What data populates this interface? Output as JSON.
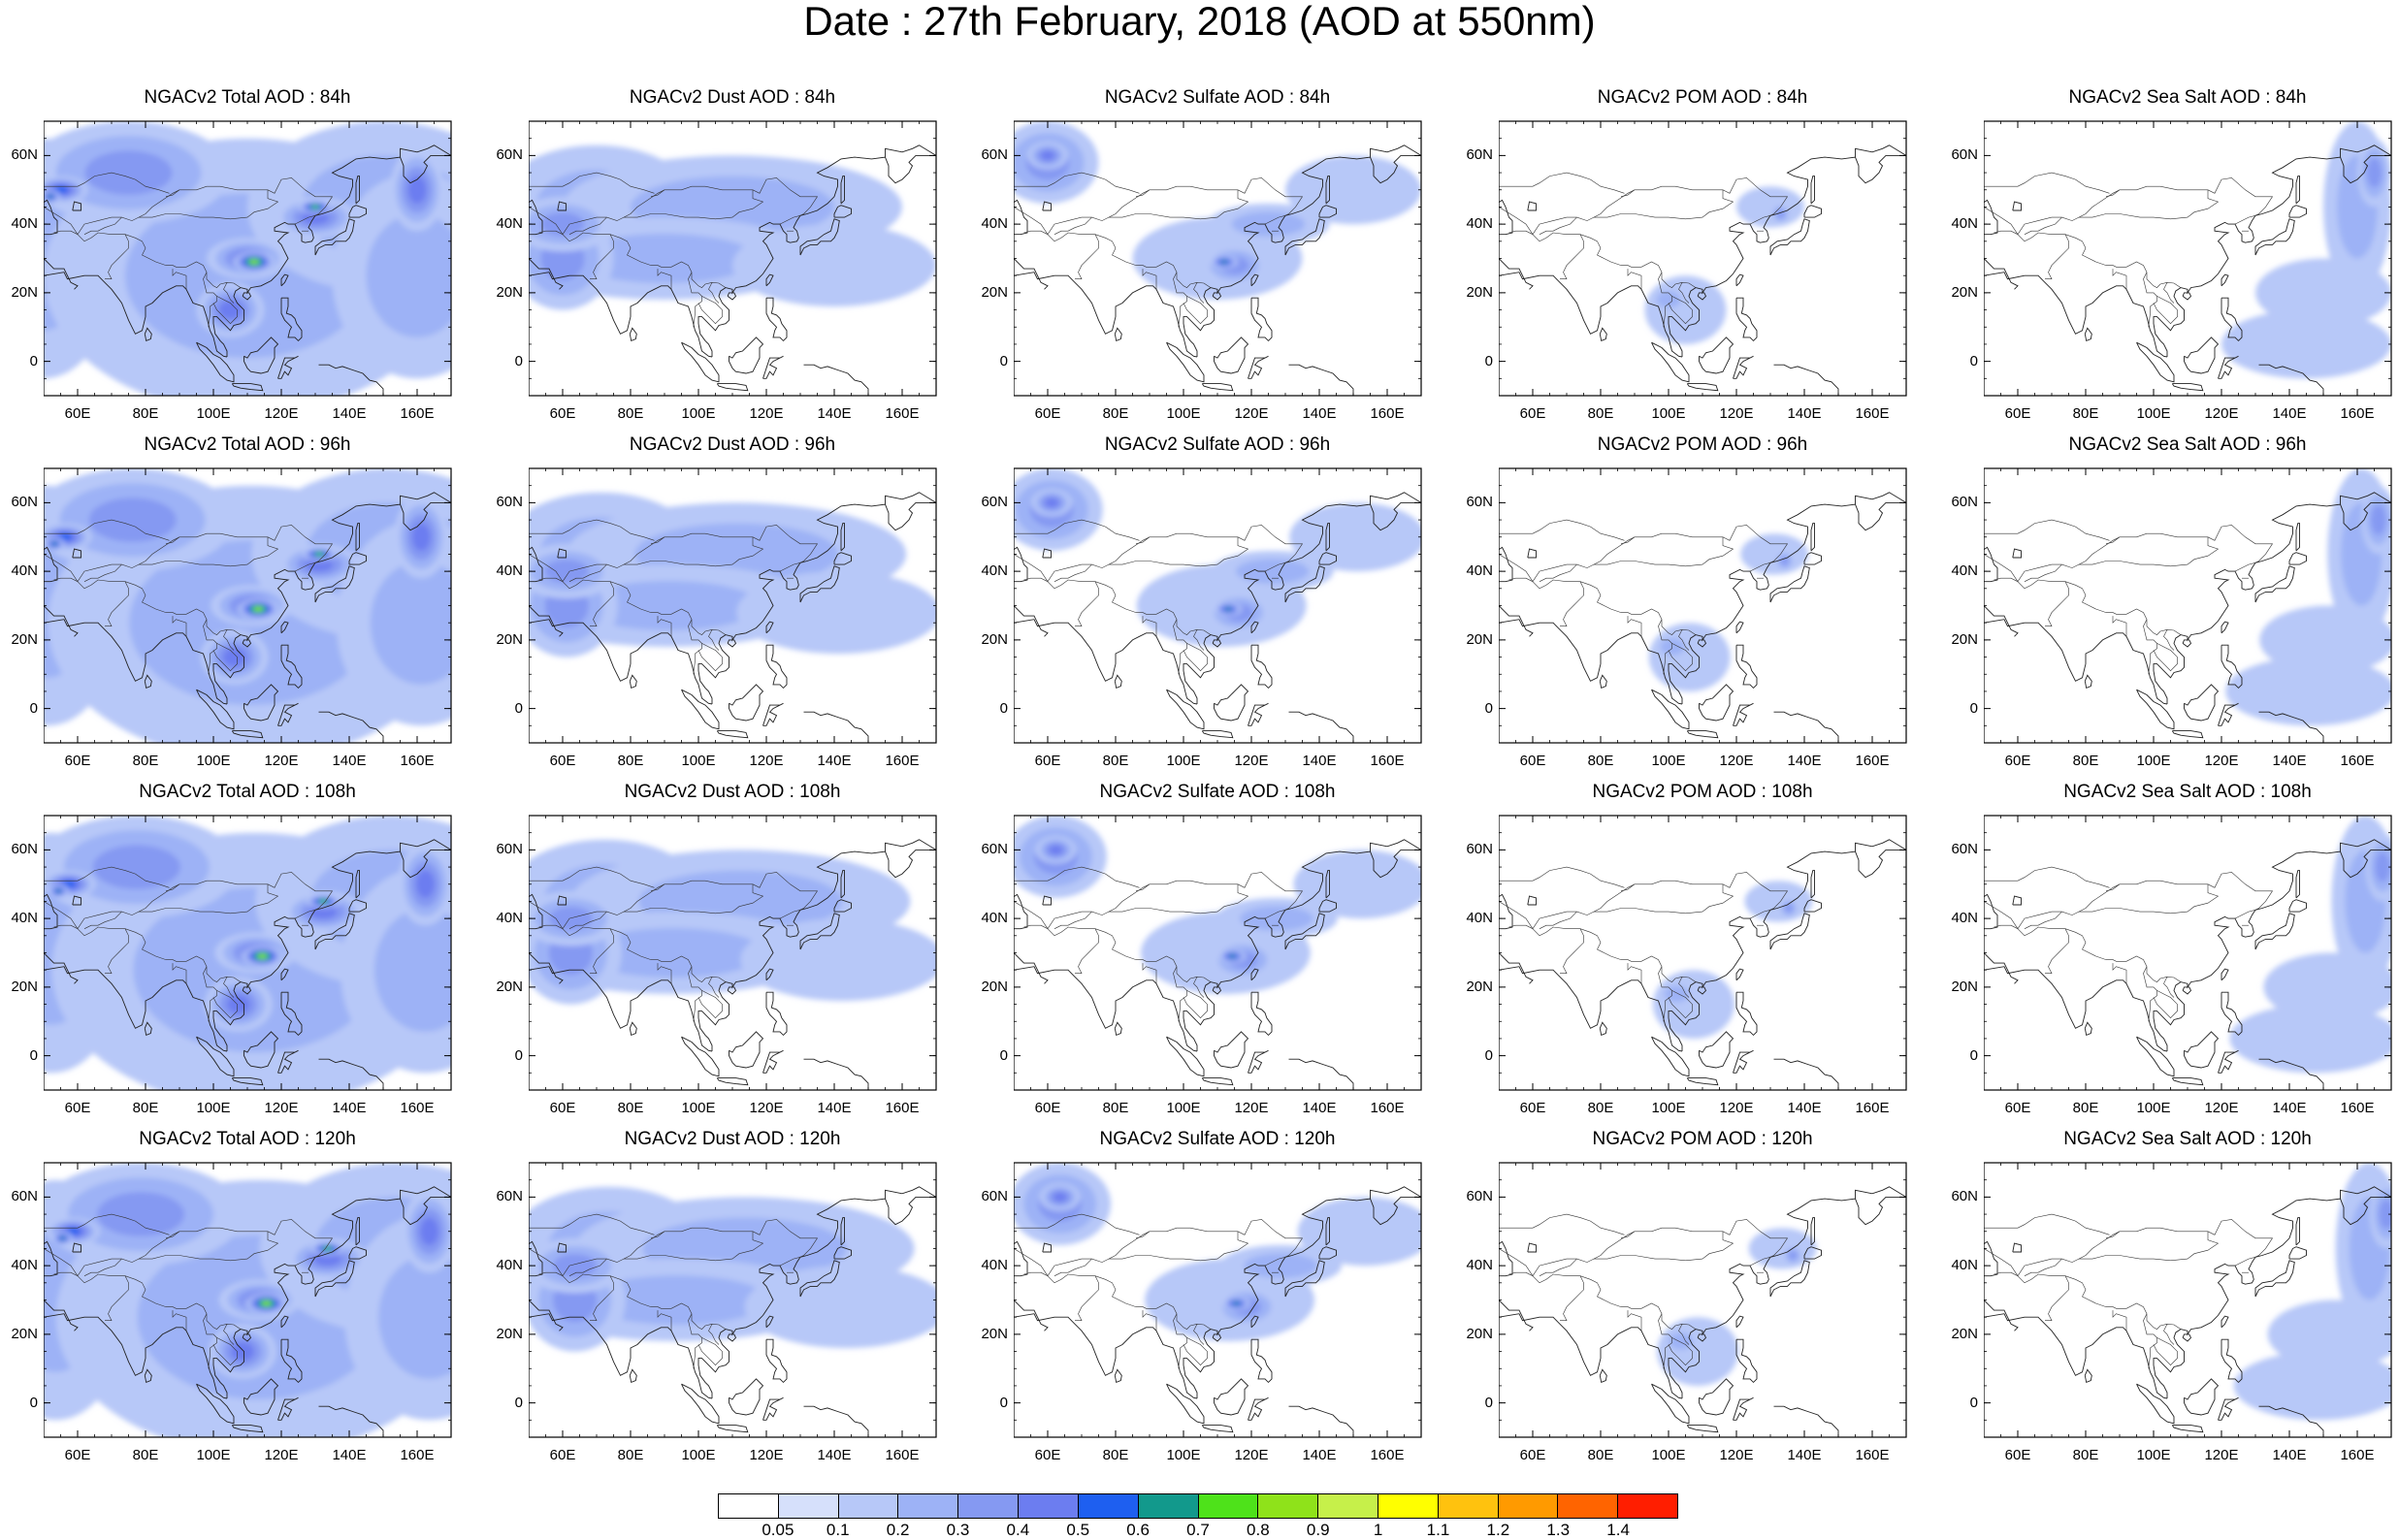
{
  "title": "Date : 27th February, 2018 (AOD at 550nm)",
  "panels": [
    {
      "title": "NGACv2 Total AOD : 84h",
      "species": "total",
      "hour": 84
    },
    {
      "title": "NGACv2 Dust AOD : 84h",
      "species": "dust",
      "hour": 84
    },
    {
      "title": "NGACv2 Sulfate AOD : 84h",
      "species": "sulfate",
      "hour": 84
    },
    {
      "title": "NGACv2 POM AOD : 84h",
      "species": "pom",
      "hour": 84
    },
    {
      "title": "NGACv2 Sea Salt AOD : 84h",
      "species": "seasalt",
      "hour": 84
    },
    {
      "title": "NGACv2 Total AOD : 96h",
      "species": "total",
      "hour": 96
    },
    {
      "title": "NGACv2 Dust AOD : 96h",
      "species": "dust",
      "hour": 96
    },
    {
      "title": "NGACv2 Sulfate AOD : 96h",
      "species": "sulfate",
      "hour": 96
    },
    {
      "title": "NGACv2 POM AOD : 96h",
      "species": "pom",
      "hour": 96
    },
    {
      "title": "NGACv2 Sea Salt AOD : 96h",
      "species": "seasalt",
      "hour": 96
    },
    {
      "title": "NGACv2 Total AOD : 108h",
      "species": "total",
      "hour": 108
    },
    {
      "title": "NGACv2 Dust AOD : 108h",
      "species": "dust",
      "hour": 108
    },
    {
      "title": "NGACv2 Sulfate AOD : 108h",
      "species": "sulfate",
      "hour": 108
    },
    {
      "title": "NGACv2 POM AOD : 108h",
      "species": "pom",
      "hour": 108
    },
    {
      "title": "NGACv2 Sea Salt AOD : 108h",
      "species": "seasalt",
      "hour": 108
    },
    {
      "title": "NGACv2 Total AOD : 120h",
      "species": "total",
      "hour": 120
    },
    {
      "title": "NGACv2 Dust AOD : 120h",
      "species": "dust",
      "hour": 120
    },
    {
      "title": "NGACv2 Sulfate AOD : 120h",
      "species": "sulfate",
      "hour": 120
    },
    {
      "title": "NGACv2 POM AOD : 120h",
      "species": "pom",
      "hour": 120
    },
    {
      "title": "NGACv2 Sea Salt  AOD : 120h",
      "species": "seasalt",
      "hour": 120
    }
  ],
  "map": {
    "lon_range": [
      50,
      170
    ],
    "lat_range": [
      -10,
      70
    ],
    "lon_ticks": [
      "60E",
      "80E",
      "100E",
      "120E",
      "140E",
      "160E"
    ],
    "lon_tick_values": [
      60,
      80,
      100,
      120,
      140,
      160
    ],
    "lat_ticks": [
      "60N",
      "40N",
      "20N",
      "0"
    ],
    "lat_tick_values": [
      60,
      40,
      20,
      0
    ]
  },
  "colorbar": {
    "levels": [
      "0.05",
      "0.1",
      "0.2",
      "0.3",
      "0.4",
      "0.5",
      "0.6",
      "0.7",
      "0.8",
      "0.9",
      "1",
      "1.1",
      "1.2",
      "1.3",
      "1.4"
    ],
    "colors": [
      "#ffffff",
      "#d6e0fb",
      "#b7c8f8",
      "#9db2f6",
      "#8599f2",
      "#6c7df0",
      "#1e5ff0",
      "#12998c",
      "#4ee21a",
      "#8fe21a",
      "#c6f04a",
      "#ffff00",
      "#ffc20e",
      "#ff9a00",
      "#ff6400",
      "#ff1e00"
    ]
  }
}
